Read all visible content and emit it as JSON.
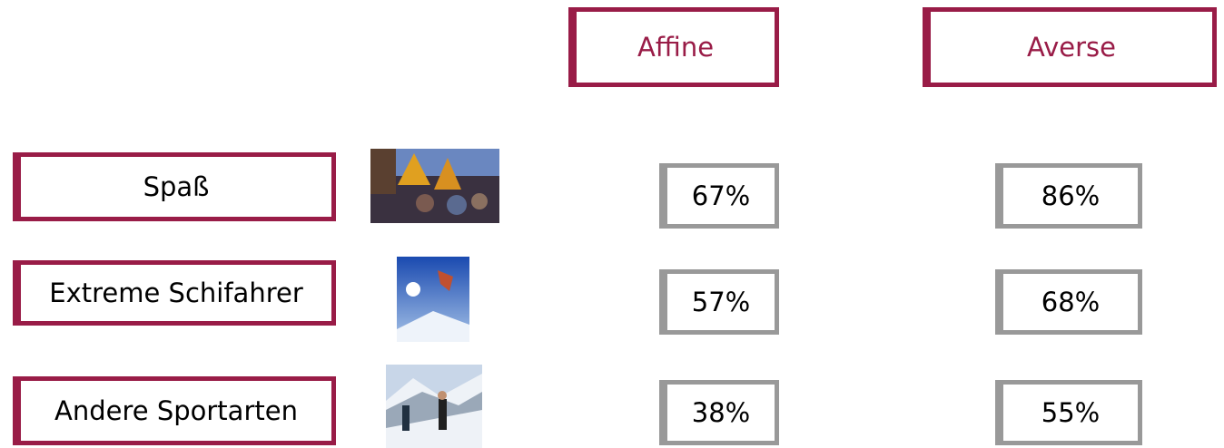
{
  "header": {
    "columns": [
      "Affine",
      "Averse"
    ]
  },
  "table": {
    "rows": [
      [
        "Spaß",
        "67%",
        "86%"
      ],
      [
        "Extreme Schifahrer",
        "57%",
        "68%"
      ],
      [
        "Andere Sportarten",
        "38%",
        "55%"
      ]
    ]
  }
}
